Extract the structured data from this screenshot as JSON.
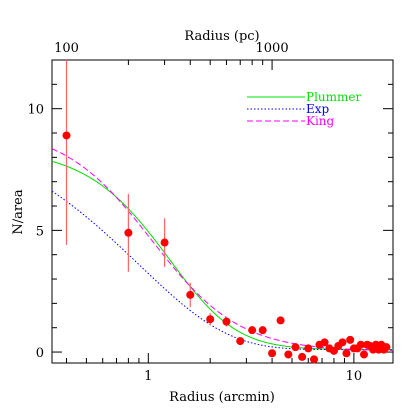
{
  "chart_data": {
    "type": "scatter",
    "x_scale": "log",
    "xlim": [
      0.34,
      15.5
    ],
    "ylim": [
      -0.45,
      12.0
    ],
    "xlabel": "Radius (arcmin)",
    "ylabel": "N/area",
    "top_xlabel": "Radius (pc)",
    "x_ticks": [
      {
        "value": 1,
        "label": "1"
      },
      {
        "value": 10,
        "label": "10"
      }
    ],
    "y_ticks": [
      {
        "value": 0,
        "label": "0"
      },
      {
        "value": 5,
        "label": "5"
      },
      {
        "value": 10,
        "label": "10"
      }
    ],
    "top_ticks": [
      {
        "value": 0.4,
        "label": "100"
      },
      {
        "value": 4.0,
        "label": "1000"
      }
    ],
    "points": [
      {
        "x": 0.4,
        "y": 8.9,
        "err": 4.5
      },
      {
        "x": 0.8,
        "y": 4.9,
        "err": 1.6
      },
      {
        "x": 1.2,
        "y": 4.5,
        "err": 1.0
      },
      {
        "x": 1.6,
        "y": 2.35,
        "err": 0.5
      },
      {
        "x": 2.0,
        "y": 1.35,
        "err": 0.25
      },
      {
        "x": 2.4,
        "y": 1.25,
        "err": 0.2
      },
      {
        "x": 2.8,
        "y": 0.45
      },
      {
        "x": 3.2,
        "y": 0.9
      },
      {
        "x": 3.6,
        "y": 0.9
      },
      {
        "x": 4.0,
        "y": -0.05
      },
      {
        "x": 4.4,
        "y": 1.3
      },
      {
        "x": 4.8,
        "y": -0.1
      },
      {
        "x": 5.2,
        "y": 0.2
      },
      {
        "x": 5.6,
        "y": -0.2
      },
      {
        "x": 6.0,
        "y": 0.15
      },
      {
        "x": 6.4,
        "y": -0.3
      },
      {
        "x": 6.8,
        "y": 0.3
      },
      {
        "x": 7.2,
        "y": 0.4
      },
      {
        "x": 7.6,
        "y": 0.15
      },
      {
        "x": 8.0,
        "y": 0.05
      },
      {
        "x": 8.4,
        "y": 0.25
      },
      {
        "x": 8.8,
        "y": 0.4
      },
      {
        "x": 9.2,
        "y": -0.05
      },
      {
        "x": 9.6,
        "y": 0.5
      },
      {
        "x": 10.0,
        "y": 0.15
      },
      {
        "x": 10.4,
        "y": 0.15
      },
      {
        "x": 10.8,
        "y": 0.3
      },
      {
        "x": 11.2,
        "y": -0.1
      },
      {
        "x": 11.6,
        "y": 0.3
      },
      {
        "x": 12.0,
        "y": 0.25
      },
      {
        "x": 12.4,
        "y": 0.1
      },
      {
        "x": 12.8,
        "y": 0.3
      },
      {
        "x": 13.2,
        "y": 0.1
      },
      {
        "x": 13.6,
        "y": 0.3
      },
      {
        "x": 14.0,
        "y": 0.1
      },
      {
        "x": 14.4,
        "y": 0.2
      }
    ],
    "point_color": "#ff0000",
    "errorbar_color": "#ff6666",
    "series": [
      {
        "name": "Plummer",
        "color": "#00e000",
        "dash": "solid",
        "model": "plummer",
        "bg": 0.1,
        "amp": 8.3,
        "rc": 1.8
      },
      {
        "name": "Exp",
        "color": "#0000ff",
        "dash": "dotted",
        "model": "exp",
        "bg": 0.1,
        "amp": 9.5,
        "rc": 0.9
      },
      {
        "name": "King",
        "color": "#ff00ff",
        "dash": "dashed",
        "model": "king",
        "bg": 0.05,
        "amp": 9.2,
        "rc": 1.05,
        "rt": 40
      }
    ],
    "legend_position": "top-right",
    "grid": false
  }
}
